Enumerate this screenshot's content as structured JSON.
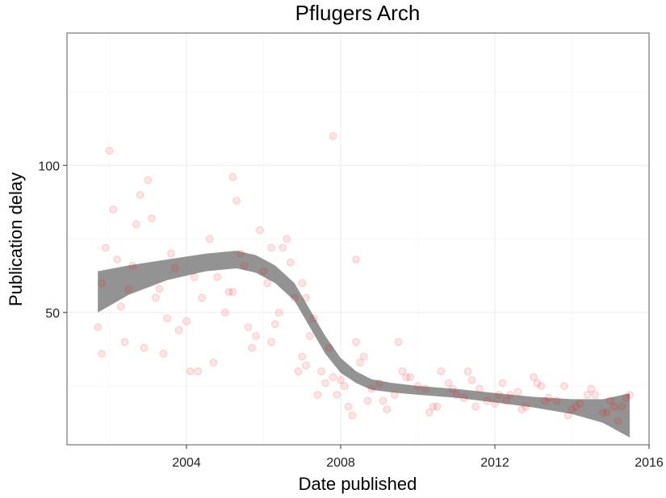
{
  "chart_data": {
    "type": "scatter",
    "title": "Pflugers Arch",
    "xlabel": "Date published",
    "ylabel": "Publication delay",
    "xlim": [
      2000.9,
      2016.0
    ],
    "ylim": [
      5,
      145
    ],
    "x_ticks": [
      2004,
      2008,
      2012,
      2016
    ],
    "y_ticks": [
      50,
      100
    ],
    "x_tick_labels": [
      "2004",
      "2008",
      "2012",
      "2016"
    ],
    "y_tick_labels": [
      "50",
      "100"
    ],
    "grid": true,
    "legend": "none",
    "point_color": "#ff0000",
    "smooth_color": "#808080",
    "series": [
      {
        "values_x": [
          2001.7,
          2001.8,
          2002.3,
          2002.6,
          2002.9,
          2003.3,
          2003.6,
          2004.0,
          2004.4,
          2004.8,
          2005.2,
          2005.5,
          2005.8,
          2006.1,
          2006.4,
          2006.7,
          2007.0,
          2007.2,
          2007.5,
          2007.8,
          2008.1,
          2008.4,
          2008.7,
          2009.0,
          2009.4,
          2009.8,
          2010.2,
          2010.6,
          2011.0,
          2011.4,
          2011.8,
          2012.2,
          2012.6,
          2013.0,
          2013.4,
          2013.8,
          2014.2,
          2014.6,
          2015.0,
          2015.3,
          2001.9,
          2002.1,
          2002.4,
          2002.7,
          2003.0,
          2003.4,
          2003.7,
          2004.1,
          2004.6,
          2005.0,
          2005.3,
          2005.6,
          2005.9,
          2006.2,
          2006.5,
          2006.8,
          2007.1,
          2007.3,
          2007.6,
          2007.9,
          2008.2,
          2008.5,
          2008.8,
          2009.1,
          2009.6,
          2010.0,
          2010.4,
          2010.8,
          2011.2,
          2011.6,
          2012.0,
          2012.4,
          2012.8,
          2013.2,
          2013.6,
          2014.0,
          2014.4,
          2014.8,
          2015.1,
          2015.4,
          2001.8,
          2002.2,
          2002.8,
          2003.2,
          2003.8,
          2004.2,
          2004.7,
          2005.1,
          2005.4,
          2005.7,
          2006.0,
          2006.3,
          2006.6,
          2006.9,
          2007.1,
          2007.4,
          2007.7,
          2008.0,
          2008.3,
          2008.6,
          2009.2,
          2009.7,
          2010.3,
          2010.9,
          2011.5,
          2012.1,
          2012.7,
          2013.3,
          2013.9,
          2014.5,
          2015.2,
          2002.0,
          2002.5,
          2003.1,
          2003.5,
          2004.3,
          2005.2,
          2006.2,
          2007.0,
          2007.8,
          2008.4,
          2009.5,
          2010.5,
          2011.3,
          2012.3,
          2013.1,
          2014.1,
          2014.9,
          2015.5
        ],
        "values_y": [
          45,
          60,
          52,
          66,
          38,
          58,
          70,
          47,
          55,
          62,
          57,
          66,
          42,
          60,
          50,
          67,
          35,
          42,
          30,
          28,
          25,
          40,
          20,
          26,
          22,
          28,
          24,
          30,
          22,
          27,
          20,
          26,
          23,
          28,
          21,
          25,
          19,
          22,
          20,
          18,
          72,
          85,
          40,
          80,
          95,
          36,
          65,
          30,
          75,
          50,
          88,
          45,
          78,
          40,
          72,
          55,
          32,
          48,
          26,
          22,
          18,
          33,
          24,
          20,
          30,
          25,
          18,
          26,
          21,
          24,
          19,
          22,
          18,
          25,
          20,
          17,
          22,
          16,
          18,
          21,
          36,
          68,
          90,
          55,
          44,
          62,
          33,
          57,
          70,
          38,
          64,
          46,
          75,
          30,
          55,
          22,
          38,
          27,
          15,
          35,
          17,
          28,
          16,
          24,
          18,
          22,
          17,
          20,
          15,
          24,
          13,
          105,
          58,
          82,
          48,
          30,
          96,
          72,
          60,
          110,
          68,
          40,
          18,
          30,
          20,
          26,
          18,
          16,
          22
        ],
        "name": ""
      }
    ],
    "smooth": {
      "x": [
        2001.7,
        2002.5,
        2003.5,
        2004.5,
        2005.3,
        2005.8,
        2006.3,
        2006.8,
        2007.2,
        2007.6,
        2008.0,
        2008.4,
        2008.8,
        2009.3,
        2010.0,
        2011.0,
        2012.0,
        2013.0,
        2014.0,
        2014.8,
        2015.5
      ],
      "y": [
        57,
        61,
        64.5,
        67,
        68,
        66.5,
        63,
        57,
        48,
        39,
        32,
        28,
        25.5,
        24.5,
        23.5,
        22.5,
        21,
        19.5,
        18,
        16.5,
        15
      ],
      "se": [
        7,
        5,
        3.5,
        3,
        3,
        3,
        3,
        3,
        3,
        3,
        2.5,
        2,
        1.8,
        1.6,
        1.5,
        1.5,
        1.6,
        1.8,
        2.5,
        4,
        7.5
      ]
    }
  }
}
